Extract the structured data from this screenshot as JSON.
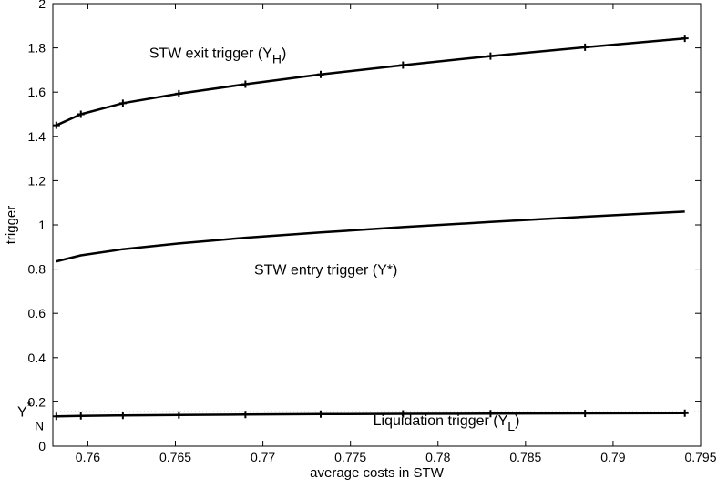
{
  "chart_data": {
    "type": "line",
    "xlabel": "average costs in STW",
    "ylabel": "trigger",
    "xlim": [
      0.758,
      0.795
    ],
    "ylim": [
      0,
      2
    ],
    "xticks": [
      "0.76",
      "0.765",
      "0.77",
      "0.775",
      "0.78",
      "0.785",
      "0.79",
      "0.795"
    ],
    "xtick_values": [
      0.76,
      0.765,
      0.77,
      0.775,
      0.78,
      0.785,
      0.79,
      0.795
    ],
    "yticks": [
      "0",
      "0.2",
      "0.4",
      "0.6",
      "0.8",
      "1",
      "1.2",
      "1.4",
      "1.6",
      "1.8",
      "2"
    ],
    "ytick_values": [
      0,
      0.2,
      0.4,
      0.6,
      0.8,
      1,
      1.2,
      1.4,
      1.6,
      1.8,
      2
    ],
    "grid": false,
    "series": [
      {
        "key": "exit",
        "marker": "+",
        "x": [
          0.7582,
          0.7596,
          0.762,
          0.7652,
          0.769,
          0.7733,
          0.778,
          0.783,
          0.7884,
          0.7941
        ],
        "y": [
          1.45,
          1.5,
          1.55,
          1.593,
          1.636,
          1.68,
          1.722,
          1.763,
          1.803,
          1.843
        ]
      },
      {
        "key": "entry",
        "marker": "none",
        "x": [
          0.7582,
          0.7596,
          0.762,
          0.7652,
          0.769,
          0.7733,
          0.778,
          0.783,
          0.7884,
          0.7941
        ],
        "y": [
          0.835,
          0.862,
          0.89,
          0.916,
          0.942,
          0.966,
          0.99,
          1.013,
          1.037,
          1.06
        ]
      },
      {
        "key": "liquidation",
        "marker": "+",
        "x": [
          0.7582,
          0.7596,
          0.762,
          0.7652,
          0.769,
          0.7733,
          0.778,
          0.783,
          0.7884,
          0.7941
        ],
        "y": [
          0.135,
          0.137,
          0.139,
          0.141,
          0.143,
          0.145,
          0.146,
          0.147,
          0.148,
          0.149
        ]
      }
    ],
    "reference_line": {
      "style": "dotted",
      "y": 0.155
    },
    "annotations": {
      "exit": {
        "text": "STW exit trigger (Y",
        "sub": "H",
        "close": ")",
        "x": 0.7635,
        "y": 1.755
      },
      "entry": {
        "text": "STW entry trigger (Y*)",
        "x": 0.7695,
        "y": 0.775
      },
      "liquidation": {
        "text": "Liquidation trigger (Y",
        "sub": "L",
        "close": ")",
        "x": 0.7763,
        "y": 0.095
      },
      "yn": {
        "main": "Y",
        "sup": "*",
        "sub": "N"
      }
    }
  }
}
